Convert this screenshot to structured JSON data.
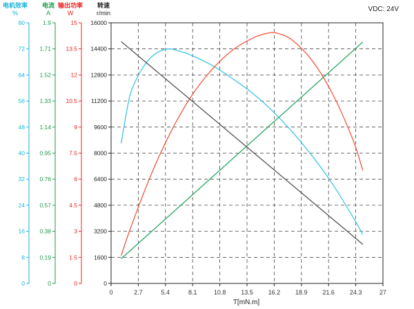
{
  "chart_data": {
    "type": "line",
    "annotation": "VDC: 24V",
    "xlabel": "T[mN.m]",
    "x_ticks": [
      0,
      2.7,
      5.4,
      8.1,
      10.8,
      13.5,
      16.2,
      18.9,
      21.6,
      24.3,
      27
    ],
    "xlim": [
      0,
      27
    ],
    "axes": [
      {
        "key": "eff",
        "title": [
          "电机效率",
          "%"
        ],
        "color": "#1ab3d8",
        "min": 0,
        "max": 80,
        "ticks": [
          "0",
          "8",
          "16",
          "24",
          "32",
          "40",
          "48",
          "56",
          "64",
          "72",
          "80"
        ]
      },
      {
        "key": "cur",
        "title": [
          "电流",
          "A"
        ],
        "color": "#1a9a4a",
        "min": 0,
        "max": 1.9,
        "ticks": [
          "0",
          "0.19",
          "0.38",
          "0.57",
          "0.76",
          "0.95",
          "1.14",
          "1.33",
          "1.52",
          "1.71",
          "1.9"
        ]
      },
      {
        "key": "pow",
        "title": [
          "输出功率",
          "W"
        ],
        "color": "#ee2222",
        "min": 0,
        "max": 15,
        "ticks": [
          "0",
          "1.5",
          "3",
          "4.5",
          "6",
          "7.5",
          "9",
          "10.5",
          "12",
          "13.5",
          "15"
        ]
      },
      {
        "key": "spd",
        "title": [
          "转速",
          "r/min"
        ],
        "color": "#222222",
        "min": 0,
        "max": 16000,
        "ticks": [
          "0",
          "1600",
          "3200",
          "4800",
          "6400",
          "8000",
          "9600",
          "11200",
          "12800",
          "14400",
          "16000"
        ]
      }
    ],
    "series": [
      {
        "axis": "eff",
        "color": "#3cc4e6",
        "x": [
          1.0,
          1.5,
          2.0,
          3.0,
          4.0,
          5.0,
          5.8,
          6.6,
          8.0,
          10.0,
          12.0,
          14.0,
          16.0,
          18.0,
          20.0,
          22.0,
          24.0,
          25.0
        ],
        "y": [
          43.0,
          52.0,
          59.0,
          65.5,
          69.5,
          71.5,
          72.0,
          71.5,
          70.0,
          67.0,
          63.0,
          58.5,
          53.0,
          46.5,
          39.0,
          30.5,
          20.5,
          15.0
        ]
      },
      {
        "axis": "cur",
        "color": "#26a562",
        "x": [
          1.0,
          25.0
        ],
        "y": [
          0.18,
          1.76
        ]
      },
      {
        "axis": "pow",
        "color": "#f0553a",
        "x": [
          1.0,
          2.0,
          4.0,
          6.0,
          8.0,
          10.0,
          12.0,
          14.0,
          15.5,
          16.5,
          18.0,
          20.0,
          22.0,
          24.0,
          25.0
        ],
        "y": [
          1.6,
          3.3,
          6.3,
          8.8,
          10.8,
          12.3,
          13.4,
          14.1,
          14.4,
          14.4,
          14.0,
          12.8,
          10.9,
          8.3,
          6.5
        ]
      },
      {
        "axis": "spd",
        "color": "#555555",
        "x": [
          1.0,
          25.0
        ],
        "y": [
          14850,
          2400
        ]
      }
    ],
    "grid": true
  }
}
